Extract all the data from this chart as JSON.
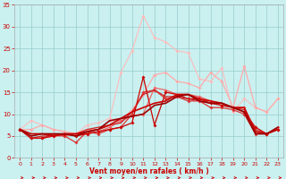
{
  "background_color": "#caf0f0",
  "grid_color": "#99cccc",
  "xlabel": "Vent moyen/en rafales ( km/h )",
  "xlabel_color": "#cc0000",
  "tick_color": "#cc0000",
  "xlim": [
    -0.5,
    23.5
  ],
  "ylim": [
    0,
    35
  ],
  "xticks": [
    0,
    1,
    2,
    3,
    4,
    5,
    6,
    7,
    8,
    9,
    10,
    11,
    12,
    13,
    14,
    15,
    16,
    17,
    18,
    19,
    20,
    21,
    22,
    23
  ],
  "yticks": [
    0,
    5,
    10,
    15,
    20,
    25,
    30,
    35
  ],
  "lines": [
    {
      "x": [
        0,
        1,
        2,
        3,
        4,
        5,
        6,
        7,
        8,
        9,
        10,
        11,
        12,
        13,
        14,
        15,
        16,
        17,
        18,
        19,
        20,
        21,
        22,
        23
      ],
      "y": [
        6.5,
        8.5,
        7.5,
        6.5,
        6.0,
        5.5,
        7.5,
        8.0,
        9.0,
        19.5,
        24.5,
        32.5,
        27.5,
        26.5,
        24.5,
        24.0,
        18.0,
        17.5,
        20.5,
        10.5,
        13.5,
        11.5,
        10.5,
        13.5
      ],
      "color": "#ffbbbb",
      "lw": 0.8,
      "marker": "D",
      "ms": 2.0
    },
    {
      "x": [
        0,
        1,
        2,
        3,
        4,
        5,
        6,
        7,
        8,
        9,
        10,
        11,
        12,
        13,
        14,
        15,
        16,
        17,
        18,
        19,
        20,
        21,
        22,
        23
      ],
      "y": [
        6.5,
        6.5,
        7.5,
        6.5,
        6.0,
        5.5,
        6.5,
        6.5,
        8.5,
        8.5,
        11.0,
        14.5,
        19.0,
        19.5,
        17.5,
        17.0,
        16.0,
        19.5,
        17.5,
        11.5,
        21.0,
        11.5,
        10.5,
        13.5
      ],
      "color": "#ffaaaa",
      "lw": 0.9,
      "marker": "D",
      "ms": 2.0
    },
    {
      "x": [
        0,
        1,
        2,
        3,
        4,
        5,
        6,
        7,
        8,
        9,
        10,
        11,
        12,
        13,
        14,
        15,
        16,
        17,
        18,
        19,
        20,
        21,
        22,
        23
      ],
      "y": [
        6.5,
        4.5,
        4.5,
        5.0,
        5.0,
        5.5,
        5.5,
        6.0,
        7.0,
        8.5,
        9.5,
        10.0,
        16.0,
        15.5,
        14.5,
        14.5,
        14.0,
        13.0,
        12.0,
        11.5,
        11.5,
        6.0,
        5.5,
        7.0
      ],
      "color": "#ee6666",
      "lw": 0.9,
      "marker": "D",
      "ms": 2.0
    },
    {
      "x": [
        0,
        1,
        2,
        3,
        4,
        5,
        6,
        7,
        8,
        9,
        10,
        11,
        12,
        13,
        14,
        15,
        16,
        17,
        18,
        19,
        20,
        21,
        22,
        23
      ],
      "y": [
        6.5,
        4.5,
        4.5,
        5.5,
        5.0,
        3.5,
        6.0,
        5.5,
        6.5,
        7.0,
        10.0,
        15.0,
        15.5,
        13.5,
        14.0,
        13.0,
        13.0,
        11.5,
        11.5,
        11.0,
        10.0,
        5.5,
        5.5,
        6.5
      ],
      "color": "#dd3333",
      "lw": 0.9,
      "marker": "D",
      "ms": 2.0
    },
    {
      "x": [
        0,
        1,
        2,
        3,
        4,
        5,
        6,
        7,
        8,
        9,
        10,
        11,
        12,
        13,
        14,
        15,
        16,
        17,
        18,
        19,
        20,
        21,
        22,
        23
      ],
      "y": [
        6.5,
        4.5,
        4.5,
        5.0,
        5.5,
        5.0,
        5.5,
        6.0,
        6.5,
        7.0,
        8.0,
        18.5,
        7.5,
        15.0,
        14.5,
        13.5,
        13.5,
        12.5,
        12.0,
        11.5,
        10.5,
        7.0,
        5.5,
        6.5
      ],
      "color": "#cc0000",
      "lw": 0.9,
      "marker": "D",
      "ms": 2.0
    },
    {
      "x": [
        0,
        1,
        2,
        3,
        4,
        5,
        6,
        7,
        8,
        9,
        10,
        11,
        12,
        13,
        14,
        15,
        16,
        17,
        18,
        19,
        20,
        21,
        22,
        23
      ],
      "y": [
        6.5,
        4.5,
        5.0,
        5.0,
        5.5,
        5.5,
        6.5,
        7.0,
        7.5,
        8.0,
        10.5,
        14.5,
        15.5,
        14.0,
        14.0,
        13.5,
        13.0,
        12.5,
        12.5,
        11.5,
        11.0,
        6.5,
        5.5,
        6.5
      ],
      "color": "#cc2222",
      "lw": 0.9,
      "marker": null,
      "ms": 0
    },
    {
      "x": [
        0,
        1,
        2,
        3,
        4,
        5,
        6,
        7,
        8,
        9,
        10,
        11,
        12,
        13,
        14,
        15,
        16,
        17,
        18,
        19,
        20,
        21,
        22,
        23
      ],
      "y": [
        6.5,
        5.5,
        5.5,
        5.0,
        5.5,
        5.5,
        6.0,
        6.5,
        7.5,
        9.0,
        10.5,
        11.5,
        12.5,
        13.0,
        14.5,
        14.5,
        13.5,
        13.0,
        12.5,
        11.5,
        11.5,
        6.0,
        5.5,
        6.5
      ],
      "color": "#cc0000",
      "lw": 1.2,
      "marker": null,
      "ms": 0
    },
    {
      "x": [
        0,
        1,
        2,
        3,
        4,
        5,
        6,
        7,
        8,
        9,
        10,
        11,
        12,
        13,
        14,
        15,
        16,
        17,
        18,
        19,
        20,
        21,
        22,
        23
      ],
      "y": [
        6.5,
        5.0,
        5.5,
        5.5,
        5.5,
        5.0,
        6.0,
        6.5,
        8.5,
        9.0,
        9.5,
        10.0,
        12.0,
        12.5,
        14.0,
        14.5,
        13.0,
        12.5,
        12.5,
        11.5,
        10.5,
        5.5,
        5.5,
        7.0
      ],
      "color": "#990000",
      "lw": 1.2,
      "marker": null,
      "ms": 0
    }
  ],
  "arrow_color": "#cc0000",
  "spine_color": "#aaaaaa"
}
